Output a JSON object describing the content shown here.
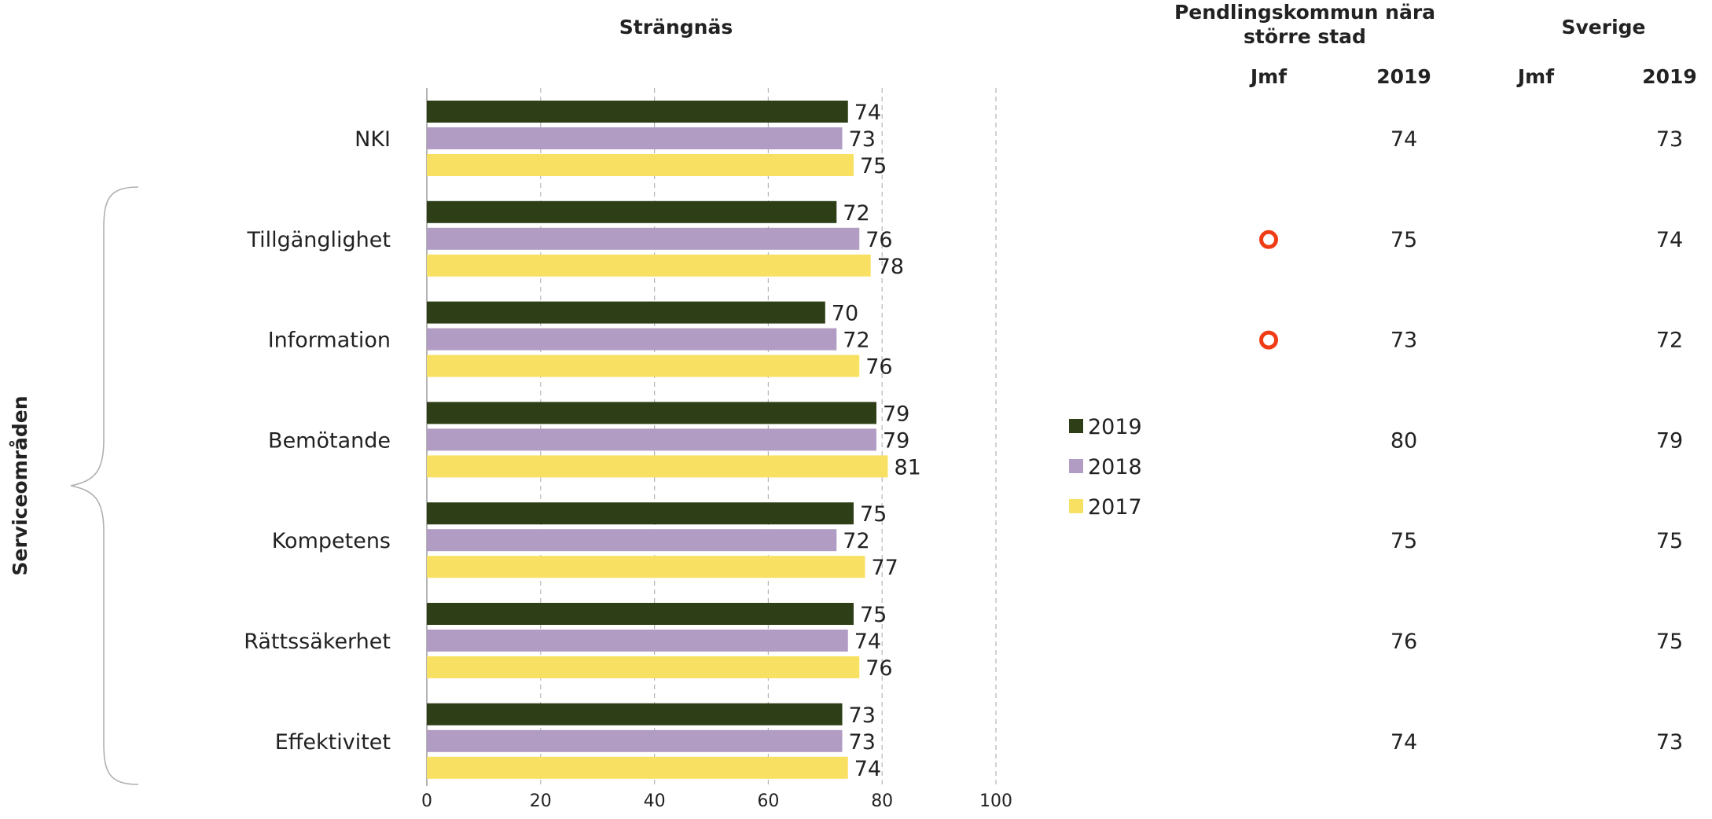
{
  "chart_data": {
    "type": "bar",
    "orientation": "horizontal",
    "title": "Strängnäs",
    "group_label": "Serviceområden",
    "categories": [
      "NKI",
      "Tillgänglighet",
      "Information",
      "Bemötande",
      "Kompetens",
      "Rättssäkerhet",
      "Effektivitet"
    ],
    "series": [
      {
        "name": "2019",
        "color": "#2e3f17",
        "values": [
          74,
          72,
          70,
          79,
          75,
          75,
          73
        ]
      },
      {
        "name": "2018",
        "color": "#b19cc3",
        "values": [
          73,
          76,
          72,
          79,
          72,
          74,
          73
        ]
      },
      {
        "name": "2017",
        "color": "#f8e062",
        "values": [
          75,
          78,
          76,
          81,
          77,
          76,
          74
        ]
      }
    ],
    "xlim": [
      0,
      100
    ],
    "xticks": [
      0,
      20,
      40,
      60,
      80,
      100
    ],
    "grid": true,
    "legend_position": "right"
  },
  "comparison": {
    "groups": [
      {
        "title": "Pendlingskommun nära större stad",
        "jmf_label": "Jmf",
        "year_label": "2019",
        "jmf": [
          false,
          true,
          true,
          false,
          false,
          false,
          false
        ],
        "values": [
          74,
          75,
          73,
          80,
          75,
          76,
          74
        ]
      },
      {
        "title": "Sverige",
        "jmf_label": "Jmf",
        "year_label": "2019",
        "jmf": [
          false,
          false,
          false,
          false,
          false,
          false,
          false
        ],
        "values": [
          73,
          74,
          72,
          79,
          75,
          75,
          73
        ]
      }
    ],
    "marker_color": "#f03c14"
  }
}
